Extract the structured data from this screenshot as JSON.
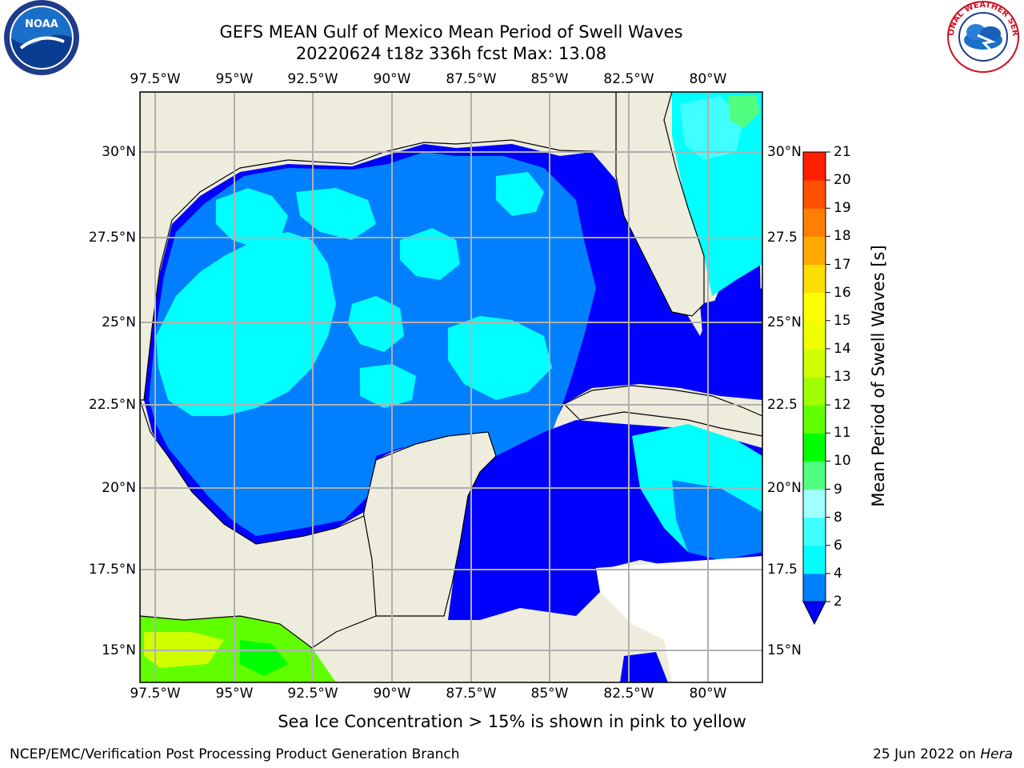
{
  "header": {
    "title_line1": "GEFS MEAN Gulf of Mexico Mean Period of Swell Waves",
    "title_line2": "20220624 t18z 336h fcst   Max: 13.08"
  },
  "logos": {
    "left": {
      "name": "noaa-logo",
      "text": "NOAA"
    },
    "right": {
      "name": "nws-logo",
      "text": "NATIONAL WEATHER SERVICE"
    }
  },
  "map": {
    "lon_ticks_top": [
      "97.5°W",
      "95°W",
      "92.5°W",
      "90°W",
      "87.5°W",
      "85°W",
      "82.5°W",
      "80°W"
    ],
    "lon_ticks_bottom": [
      "97.5°W",
      "95°W",
      "92.5°W",
      "90°W",
      "87.5°W",
      "85°W",
      "82.5°W",
      "80°W"
    ],
    "lat_ticks_left": [
      "30°N",
      "27.5°N",
      "25°N",
      "22.5°N",
      "20°N",
      "17.5°N",
      "15°N"
    ],
    "lat_ticks_right": [
      "30°N",
      "27.5",
      "25°N",
      "22.5",
      "20°N",
      "17.5",
      "15°N"
    ],
    "extent": {
      "lon_min": -98.0,
      "lon_max": -78.3,
      "lat_min": 14.0,
      "lat_max": 31.7
    },
    "grid": true,
    "land_color": "#eeecdc",
    "ocean_no_data_color": "#ffffff"
  },
  "colorbar": {
    "label": "Mean Period of Swell Waves [s]",
    "levels": [
      "2",
      "4",
      "6",
      "8",
      "9",
      "10",
      "11",
      "12",
      "13",
      "14",
      "15",
      "16",
      "17",
      "18",
      "19",
      "20",
      "21"
    ],
    "colors": [
      "#0000ff",
      "#0080ff",
      "#00ffff",
      "#40ffff",
      "#a0ffff",
      "#50ff80",
      "#00ff00",
      "#60ff00",
      "#a0ff00",
      "#d0ff00",
      "#eeff00",
      "#ffff00",
      "#ffdd00",
      "#ffaa00",
      "#ff8000",
      "#ff5000",
      "#ff2000",
      "#ff0000"
    ],
    "extend": "min"
  },
  "caption": "Sea Ice Concentration > 15% is shown in pink to yellow",
  "footer": {
    "left": "NCEP/EMC/Verification Post Processing Product Generation Branch",
    "right_prefix": "25 Jun 2022 on ",
    "right_host": "Hera"
  }
}
